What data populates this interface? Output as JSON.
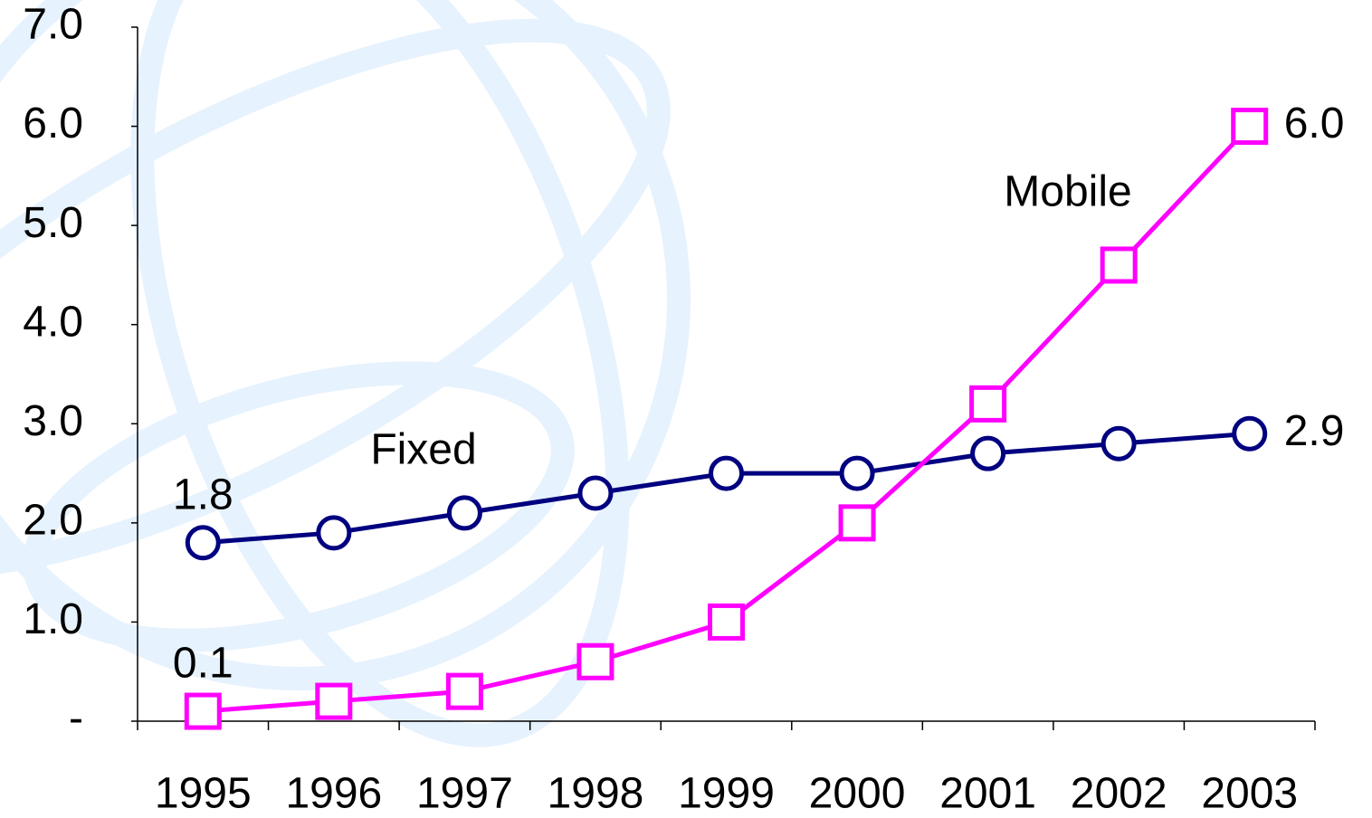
{
  "chart_data": {
    "type": "line",
    "categories": [
      "1995",
      "1996",
      "1997",
      "1998",
      "1999",
      "2000",
      "2001",
      "2002",
      "2003"
    ],
    "series": [
      {
        "name": "Fixed",
        "color": "#000080",
        "marker": "circle",
        "values": [
          1.8,
          1.9,
          2.1,
          2.3,
          2.5,
          2.5,
          2.7,
          2.8,
          2.9
        ],
        "value_labels": [
          "1.8",
          null,
          null,
          null,
          null,
          null,
          null,
          null,
          "2.9"
        ]
      },
      {
        "name": "Mobile",
        "color": "#ff00ff",
        "marker": "square",
        "values": [
          0.1,
          0.2,
          0.3,
          0.6,
          1.0,
          2.0,
          3.2,
          4.6,
          6.0
        ],
        "value_labels": [
          "0.1",
          null,
          null,
          null,
          null,
          null,
          null,
          null,
          "6.0"
        ]
      }
    ],
    "ylim": [
      0,
      7
    ],
    "yticks": [
      {
        "value": 0,
        "label": "-"
      },
      {
        "value": 1,
        "label": "1.0"
      },
      {
        "value": 2,
        "label": "2.0"
      },
      {
        "value": 3,
        "label": "3.0"
      },
      {
        "value": 4,
        "label": "4.0"
      },
      {
        "value": 5,
        "label": "5.0"
      },
      {
        "value": 6,
        "label": "6.0"
      },
      {
        "value": 7,
        "label": "7.0"
      }
    ],
    "grid": false
  }
}
